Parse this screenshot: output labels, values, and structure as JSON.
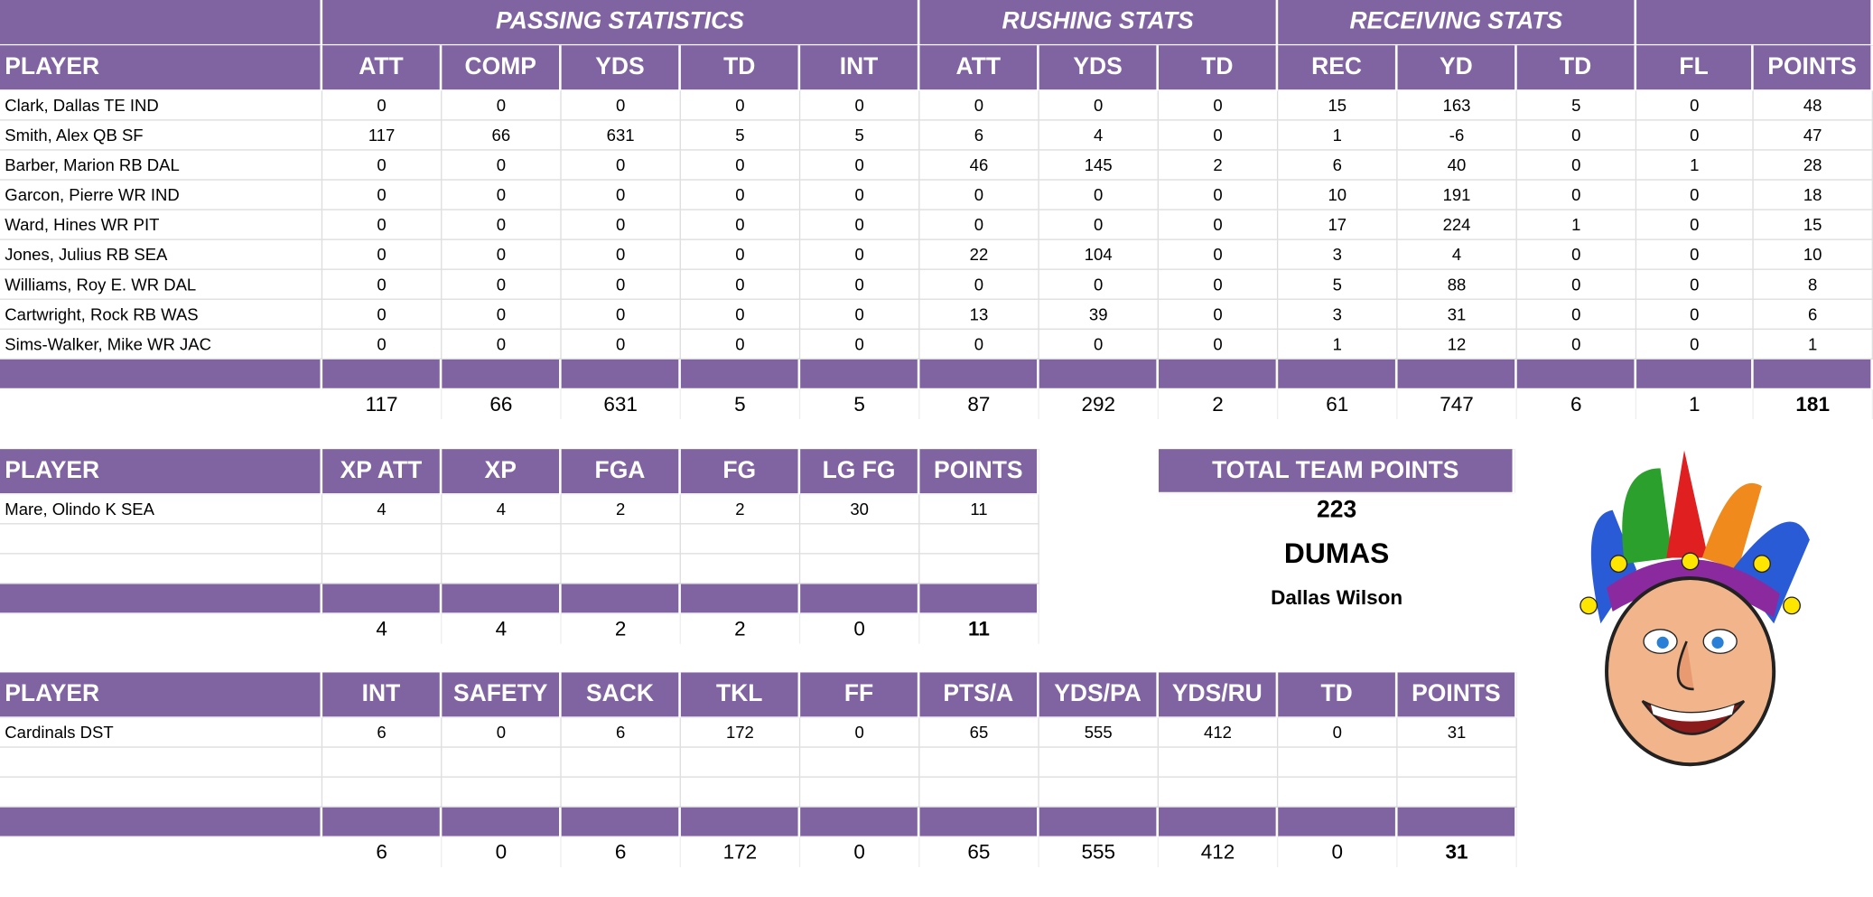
{
  "passing_table": {
    "group_headers": [
      "PASSING STATISTICS",
      "RUSHING STATS",
      "RECEIVING STATS"
    ],
    "columns": [
      "PLAYER",
      "ATT",
      "COMP",
      "YDS",
      "TD",
      "INT",
      "ATT",
      "YDS",
      "TD",
      "REC",
      "YD",
      "TD",
      "FL",
      "POINTS"
    ],
    "rows": [
      [
        "Clark, Dallas TE IND",
        0,
        0,
        0,
        0,
        0,
        0,
        0,
        0,
        15,
        163,
        5,
        0,
        48
      ],
      [
        "Smith, Alex QB SF",
        117,
        66,
        631,
        5,
        5,
        6,
        4,
        0,
        1,
        -6,
        0,
        0,
        47
      ],
      [
        "Barber, Marion RB DAL",
        0,
        0,
        0,
        0,
        0,
        46,
        145,
        2,
        6,
        40,
        0,
        1,
        28
      ],
      [
        "Garcon, Pierre WR IND",
        0,
        0,
        0,
        0,
        0,
        0,
        0,
        0,
        10,
        191,
        0,
        0,
        18
      ],
      [
        "Ward, Hines WR PIT",
        0,
        0,
        0,
        0,
        0,
        0,
        0,
        0,
        17,
        224,
        1,
        0,
        15
      ],
      [
        "Jones, Julius RB SEA",
        0,
        0,
        0,
        0,
        0,
        22,
        104,
        0,
        3,
        4,
        0,
        0,
        10
      ],
      [
        "Williams, Roy E. WR DAL",
        0,
        0,
        0,
        0,
        0,
        0,
        0,
        0,
        5,
        88,
        0,
        0,
        8
      ],
      [
        "Cartwright, Rock RB WAS",
        0,
        0,
        0,
        0,
        0,
        13,
        39,
        0,
        3,
        31,
        0,
        0,
        6
      ],
      [
        "Sims-Walker, Mike WR JAC",
        0,
        0,
        0,
        0,
        0,
        0,
        0,
        0,
        1,
        12,
        0,
        0,
        1
      ]
    ],
    "totals": [
      117,
      66,
      631,
      5,
      5,
      87,
      292,
      2,
      61,
      747,
      6,
      1,
      181
    ]
  },
  "kicking_table": {
    "columns": [
      "PLAYER",
      "XP ATT",
      "XP",
      "FGA",
      "FG",
      "LG FG",
      "POINTS"
    ],
    "rows": [
      [
        "Mare, Olindo K SEA",
        4,
        4,
        2,
        2,
        30,
        11
      ]
    ],
    "totals": [
      4,
      4,
      2,
      2,
      0,
      11
    ]
  },
  "defense_table": {
    "columns": [
      "PLAYER",
      "INT",
      "SAFETY",
      "SACK",
      "TKL",
      "FF",
      "PTS/A",
      "YDS/PA",
      "YDS/RU",
      "TD",
      "POINTS"
    ],
    "rows": [
      [
        "Cardinals DST",
        6,
        0,
        6,
        172,
        0,
        65,
        555,
        412,
        0,
        31
      ]
    ],
    "totals": [
      6,
      0,
      6,
      172,
      0,
      65,
      555,
      412,
      0,
      31
    ]
  },
  "team_summary": {
    "title": "TOTAL TEAM POINTS",
    "points": 223,
    "team": "DUMAS",
    "owner": "Dallas Wilson"
  }
}
